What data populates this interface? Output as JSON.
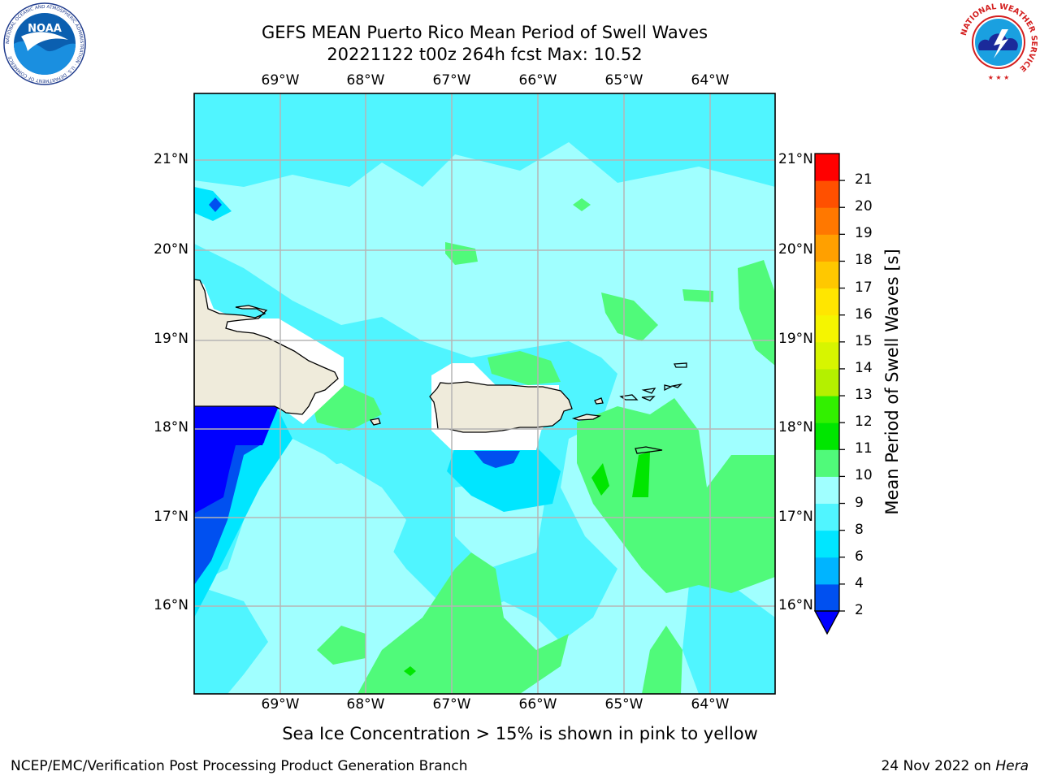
{
  "title_line1": "GEFS MEAN Puerto Rico Mean Period of Swell Waves",
  "title_line2": "20221122 t00z 264h fcst   Max: 10.52",
  "longitudes": [
    "69°W",
    "68°W",
    "67°W",
    "66°W",
    "65°W",
    "64°W"
  ],
  "latitudes": [
    "21°N",
    "20°N",
    "19°N",
    "18°N",
    "17°N",
    "16°N"
  ],
  "colorbar": {
    "label": "Mean Period of Swell Waves [s]",
    "ticks": [
      "2",
      "4",
      "6",
      "8",
      "9",
      "10",
      "11",
      "12",
      "13",
      "14",
      "15",
      "16",
      "17",
      "18",
      "19",
      "20",
      "21"
    ],
    "colors": [
      "#0050f0",
      "#00b4ff",
      "#00e6ff",
      "#50f5ff",
      "#a0ffff",
      "#50fa7a",
      "#00e600",
      "#32f000",
      "#b4f000",
      "#d7f500",
      "#f5f500",
      "#ffe600",
      "#ffc800",
      "#ffa000",
      "#ff7800",
      "#ff5000",
      "#ff0000"
    ],
    "extend_color": "#0000ff"
  },
  "subtitle": "Sea Ice Concentration > 15% is shown in pink to yellow",
  "footer_left": "NCEP/EMC/Verification Post Processing Product Generation Branch",
  "footer_date": "24 Nov 2022 on",
  "footer_host": "Hera",
  "logos": {
    "noaa_text": "NOAA",
    "noaa_ring": "NATIONAL OCEANIC AND ATMOSPHERIC ADMINISTRATION · U.S. DEPARTMENT OF COMMERCE",
    "nws_ring": "NATIONAL WEATHER SERVICE"
  },
  "map_colors": {
    "land": "#efebdb",
    "ocean_base": "#a0ffff",
    "mask": "#ffffff"
  }
}
